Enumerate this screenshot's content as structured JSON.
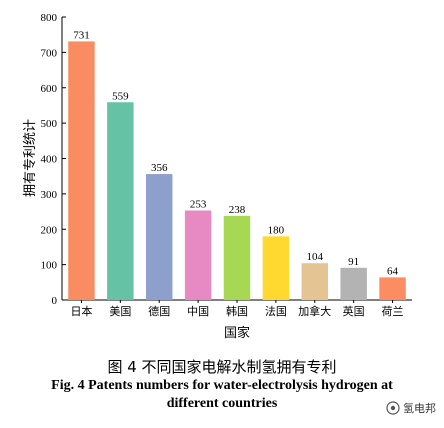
{
  "chart_data": {
    "type": "bar",
    "categories": [
      "日本",
      "美国",
      "德国",
      "中国",
      "韩国",
      "法国",
      "加拿大",
      "英国",
      "荷兰"
    ],
    "values": [
      731,
      559,
      356,
      253,
      238,
      180,
      104,
      91,
      64
    ],
    "bar_colors": [
      "#FA8C62",
      "#66C2A5",
      "#8DA0CB",
      "#E78AC3",
      "#A6D854",
      "#FFD92F",
      "#E5C494",
      "#B3B3B3",
      "#FC8D62"
    ],
    "xlabel": "国家",
    "ylabel": "拥有专利统计",
    "ylim": [
      0,
      800
    ],
    "yticks": [
      0,
      100,
      200,
      300,
      400,
      500,
      600,
      700,
      800
    ],
    "grid": false
  },
  "caption_cn": "图 4 不同国家电解水制氢拥有专利",
  "caption_en_line1": "Fig. 4 Patents numbers for water-electrolysis hydrogen at",
  "caption_en_line2": "different countries",
  "watermark": "氢电邦"
}
